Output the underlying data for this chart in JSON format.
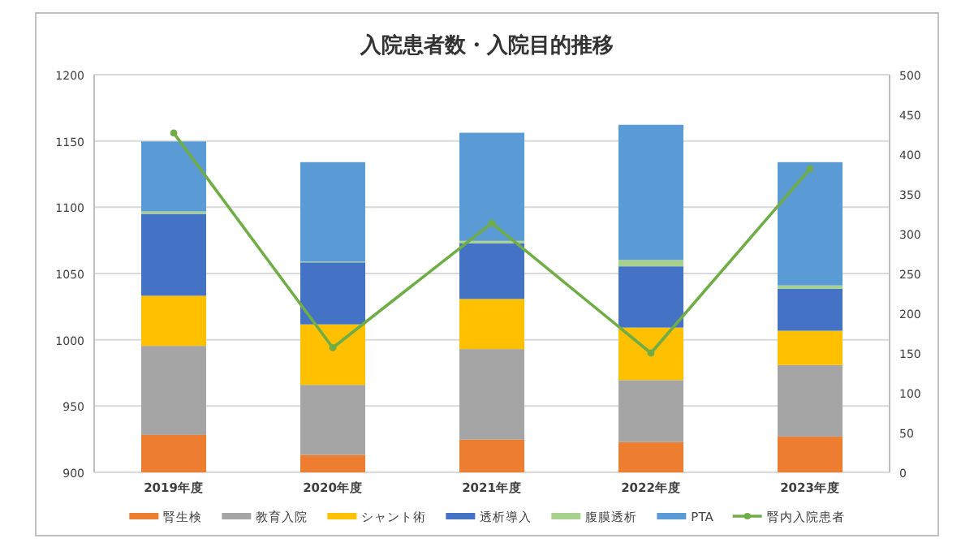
{
  "chart_data": {
    "type": "bar",
    "title": "入院患者数・入院目的推移",
    "stacked": true,
    "categories": [
      "2019年度",
      "2020年度",
      "2021年度",
      "2022年度",
      "2023年度"
    ],
    "series": [
      {
        "name": "腎生検",
        "color": "#ed7d31",
        "axis": "y2",
        "values": [
          47,
          22,
          41,
          38,
          45
        ]
      },
      {
        "name": "教育入院",
        "color": "#a5a5a5",
        "axis": "y2",
        "values": [
          112,
          88,
          114,
          78,
          90
        ]
      },
      {
        "name": "シャント術",
        "color": "#ffc000",
        "axis": "y2",
        "values": [
          63,
          76,
          63,
          66,
          43
        ]
      },
      {
        "name": "透析導入",
        "color": "#4472c4",
        "axis": "y2",
        "values": [
          103,
          78,
          70,
          77,
          53
        ]
      },
      {
        "name": "腹膜透析",
        "color": "#a9d18e",
        "axis": "y2",
        "values": [
          3,
          1,
          3,
          8,
          4
        ]
      },
      {
        "name": "PTA",
        "color": "#5b9bd5",
        "axis": "y2",
        "values": [
          88,
          125,
          136,
          170,
          155
        ]
      },
      {
        "name": "腎内入院患者",
        "type": "line",
        "color": "#70ad47",
        "marker": "circle",
        "axis": "y",
        "values": [
          1156,
          994,
          1088,
          990,
          1129
        ]
      }
    ],
    "ylim": [
      900,
      1200
    ],
    "yticks": [
      900,
      950,
      1000,
      1050,
      1100,
      1150,
      1200
    ],
    "y2lim": [
      0,
      500
    ],
    "y2ticks": [
      0,
      50,
      100,
      150,
      200,
      250,
      300,
      350,
      400,
      450,
      500
    ],
    "grid": "y",
    "legend": "bottom"
  }
}
